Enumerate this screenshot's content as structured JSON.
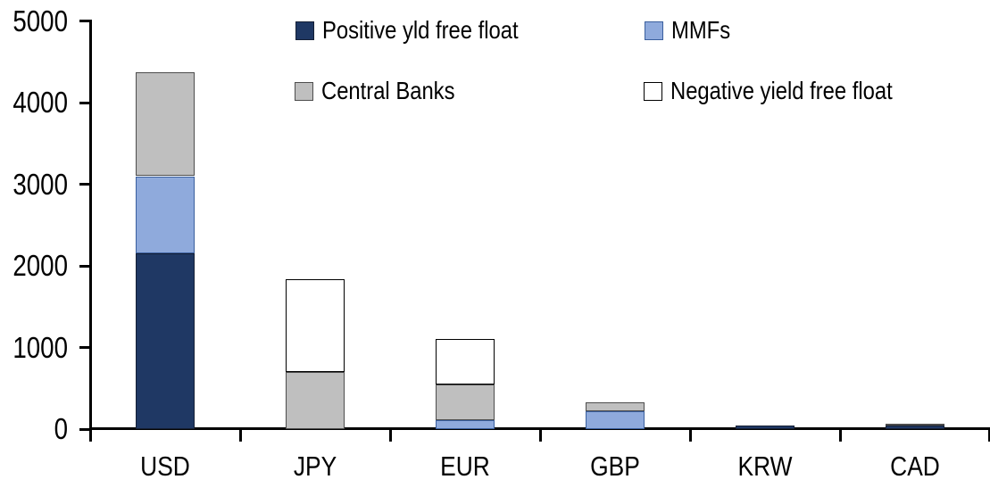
{
  "chart_data": {
    "type": "bar",
    "stacked": true,
    "title": "",
    "xlabel": "",
    "ylabel": "",
    "categories": [
      "USD",
      "JPY",
      "EUR",
      "GBP",
      "KRW",
      "CAD"
    ],
    "series": [
      {
        "name": "Positive yld free float",
        "color": "#1F3864",
        "border_color": "#141F35",
        "values": [
          2150,
          0,
          0,
          0,
          45,
          40
        ]
      },
      {
        "name": "MMFs",
        "color": "#8FAADC",
        "border_color": "#3A5F9E",
        "values": [
          950,
          0,
          110,
          220,
          0,
          0
        ]
      },
      {
        "name": "Central Banks",
        "color": "#BFBFBF",
        "border_color": "#4D4D4D",
        "values": [
          1270,
          700,
          440,
          110,
          0,
          25
        ]
      },
      {
        "name": "Negative yield free float",
        "color": "#FFFFFF",
        "border_color": "#000000",
        "values": [
          0,
          1140,
          560,
          0,
          0,
          0
        ]
      }
    ],
    "totals": [
      4370,
      1840,
      1110,
      330,
      45,
      65
    ],
    "ylim": [
      0,
      5000
    ],
    "yticks": [
      0,
      1000,
      2000,
      3000,
      4000,
      5000
    ],
    "grid": false,
    "legend_position": "top",
    "axis_color": "#000000",
    "background": "#FFFFFF",
    "text_color": "#000000"
  }
}
